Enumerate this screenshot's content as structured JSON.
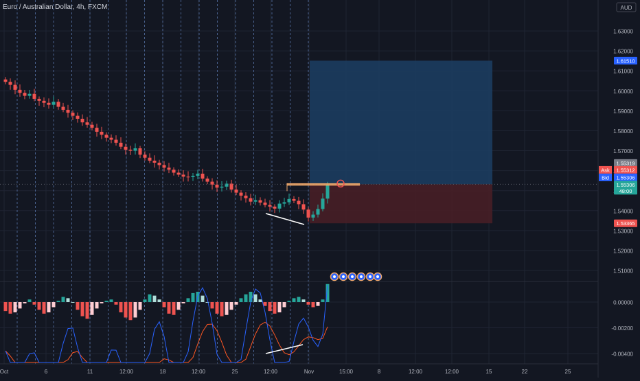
{
  "header": {
    "symbol": "Euro / Australian Dollar, 4h, FXCM",
    "currency_badge": "AUD"
  },
  "colors": {
    "background": "#131722",
    "grid": "#1f2433",
    "bull": "#26a69a",
    "bear": "#ef5350",
    "session_line": "#5d7bb3",
    "target_zone": "#1c3e63",
    "stop_zone": "#4a1f26",
    "macd": "#2962ff",
    "signal": "#ff5722",
    "trendline": "#ffffff",
    "hist_pos_strong": "#26a69a",
    "hist_pos_weak": "#b2dfdb",
    "hist_neg_strong": "#ef5350",
    "hist_neg_weak": "#ffcdd2"
  },
  "chart_data": [
    {
      "type": "candlestick",
      "title": "Euro / Australian Dollar, 4h, FXCM",
      "ylim": [
        1.5045,
        1.6455
      ],
      "y_ticks": [
        "1.63000",
        "1.62000",
        "1.61000",
        "1.60000",
        "1.59000",
        "1.58000",
        "1.57000",
        "1.56000",
        "1.55000",
        "1.54000",
        "1.53000",
        "1.52000",
        "1.51000"
      ],
      "y_tick_values": [
        1.63,
        1.62,
        1.61,
        1.6,
        1.59,
        1.58,
        1.57,
        1.56,
        1.55,
        1.54,
        1.53,
        1.52,
        1.51
      ],
      "x_ticks": [
        "Oct",
        "6",
        "11",
        "12:00",
        "18",
        "12:00",
        "25",
        "12:00",
        "Nov",
        "15:00",
        "8",
        "12:00",
        "12:00",
        "15",
        "22",
        "25"
      ],
      "ohlc_summary": {
        "start_close": 1.6045,
        "low_close": 1.5365,
        "last_close": 1.55306,
        "trend": "downtrend then sharp rebound"
      },
      "closes": [
        1.6045,
        1.603,
        1.6005,
        1.599,
        1.5975,
        1.5985,
        1.596,
        1.595,
        1.594,
        1.593,
        1.5945,
        1.592,
        1.5905,
        1.589,
        1.5875,
        1.586,
        1.5842,
        1.583,
        1.5815,
        1.5795,
        1.578,
        1.5765,
        1.5755,
        1.574,
        1.572,
        1.5705,
        1.57,
        1.5712,
        1.568,
        1.5665,
        1.565,
        1.564,
        1.5628,
        1.5615,
        1.5605,
        1.559,
        1.558,
        1.557,
        1.5568,
        1.5574,
        1.5585,
        1.556,
        1.5545,
        1.553,
        1.5515,
        1.552,
        1.5535,
        1.5505,
        1.549,
        1.5475,
        1.5462,
        1.5445,
        1.5452,
        1.544,
        1.5428,
        1.542,
        1.541,
        1.5435,
        1.5442,
        1.5458,
        1.5449,
        1.5432,
        1.5405,
        1.5365,
        1.538,
        1.5408,
        1.546,
        1.553
      ],
      "trade_levels": {
        "target": "1.61510",
        "ask": "1.55312",
        "bid": "1.55306",
        "entry": "1.55319",
        "last": "1.55306",
        "countdown": "48:00",
        "stop": "1.53365"
      },
      "labels": {
        "ask": "Ask",
        "bid": "Bid"
      }
    },
    {
      "type": "histogram-with-lines",
      "ylim": [
        -0.0048,
        0.0016
      ],
      "y_ticks": [
        "0.00000",
        "-0.00200",
        "-0.00400"
      ],
      "y_tick_values": [
        0.0,
        -0.002,
        -0.004
      ],
      "series": [
        {
          "values": [
            -0.0007,
            -0.0009,
            -0.0008,
            -0.0005,
            -0.0001,
            0.0002,
            -0.0002,
            -0.0006,
            -0.0009,
            -0.0008,
            -0.0004,
            0.0001,
            0.0004,
            0.0003,
            0.0,
            -0.0006,
            -0.0011,
            -0.0013,
            -0.001,
            -0.0005,
            -0.0001,
            0.0001,
            0.0002,
            -0.0002,
            -0.0008,
            -0.0012,
            -0.0014,
            -0.0012,
            -0.0006,
            0.0002,
            0.0006,
            0.0005,
            0.0002,
            -0.0004,
            -0.0009,
            -0.001,
            -0.0006,
            -0.0001,
            0.0003,
            0.0007,
            0.0008,
            0.0005,
            0.0,
            -0.0005,
            -0.0009,
            -0.0011,
            -0.001,
            -0.0006,
            -0.0002,
            0.0003,
            0.0006,
            0.0008,
            0.0006,
            0.0002,
            -0.0003,
            -0.0007,
            -0.0009,
            -0.0008,
            -0.0004,
            0.0001,
            0.0003,
            0.0004,
            0.0002,
            -0.0002,
            -0.0004,
            -0.0003,
            0.0002,
            0.0014
          ]
        }
      ]
    }
  ]
}
